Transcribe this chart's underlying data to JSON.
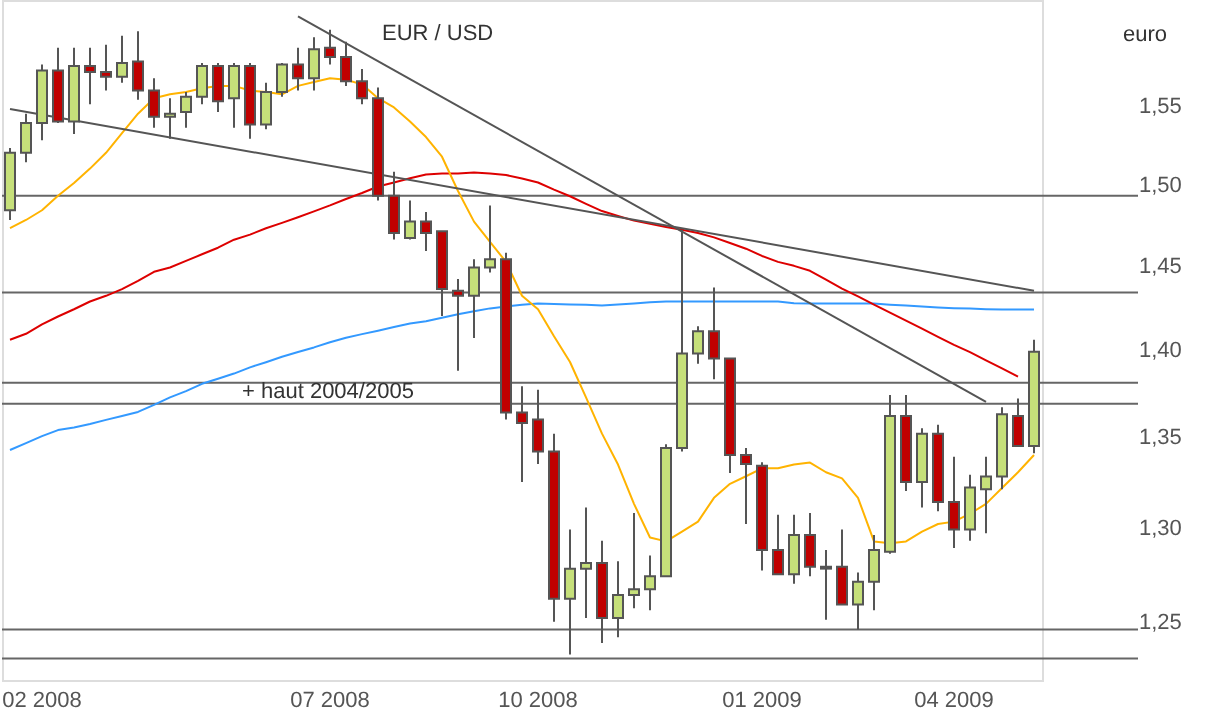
{
  "chart_data": {
    "type": "candlestick",
    "title": "EUR / USD",
    "ylabel": "euro",
    "categories": [
      null,
      null,
      "02 2008",
      null,
      null,
      null,
      null,
      null,
      null,
      null,
      null,
      null,
      null,
      null,
      null,
      null,
      null,
      null,
      null,
      null,
      "07 2008",
      null,
      null,
      null,
      null,
      null,
      null,
      null,
      null,
      null,
      null,
      null,
      null,
      "10 2008",
      null,
      null,
      null,
      null,
      null,
      null,
      null,
      null,
      null,
      null,
      null,
      null,
      null,
      "01 2009",
      null,
      null,
      null,
      null,
      null,
      null,
      null,
      null,
      null,
      null,
      null,
      "04 2009",
      null,
      null,
      null,
      null,
      null
    ],
    "ohlc": [
      [
        1.484,
        1.523,
        1.478,
        1.52
      ],
      [
        1.52,
        1.545,
        1.514,
        1.539
      ],
      [
        1.539,
        1.577,
        1.528,
        1.573
      ],
      [
        1.573,
        1.588,
        1.539,
        1.54
      ],
      [
        1.54,
        1.588,
        1.532,
        1.576
      ],
      [
        1.576,
        1.588,
        1.551,
        1.572
      ],
      [
        1.572,
        1.59,
        1.56,
        1.569
      ],
      [
        1.569,
        1.596,
        1.565,
        1.578
      ],
      [
        1.579,
        1.599,
        1.554,
        1.56
      ],
      [
        1.56,
        1.568,
        1.536,
        1.543
      ],
      [
        1.543,
        1.555,
        1.529,
        1.545
      ],
      [
        1.546,
        1.559,
        1.536,
        1.556
      ],
      [
        1.556,
        1.578,
        1.551,
        1.576
      ],
      [
        1.576,
        1.578,
        1.546,
        1.553
      ],
      [
        1.555,
        1.578,
        1.536,
        1.576
      ],
      [
        1.576,
        1.578,
        1.529,
        1.538
      ],
      [
        1.538,
        1.565,
        1.535,
        1.559
      ],
      [
        1.559,
        1.578,
        1.556,
        1.577
      ],
      [
        1.577,
        1.588,
        1.56,
        1.568
      ],
      [
        1.568,
        1.595,
        1.56,
        1.587
      ],
      [
        1.588,
        1.6,
        1.577,
        1.582
      ],
      [
        1.582,
        1.592,
        1.563,
        1.566
      ],
      [
        1.566,
        1.574,
        1.551,
        1.555
      ],
      [
        1.555,
        1.562,
        1.49,
        1.493
      ],
      [
        1.493,
        1.508,
        1.466,
        1.47
      ],
      [
        1.467,
        1.49,
        1.466,
        1.477
      ],
      [
        1.477,
        1.483,
        1.459,
        1.47
      ],
      [
        1.471,
        1.471,
        1.42,
        1.436
      ],
      [
        1.435,
        1.442,
        1.388,
        1.432
      ],
      [
        1.432,
        1.454,
        1.407,
        1.449
      ],
      [
        1.449,
        1.487,
        1.446,
        1.454
      ],
      [
        1.454,
        1.458,
        1.36,
        1.364
      ],
      [
        1.364,
        1.379,
        1.325,
        1.358
      ],
      [
        1.36,
        1.377,
        1.335,
        1.342
      ],
      [
        1.342,
        1.352,
        1.25,
        1.262
      ],
      [
        1.262,
        1.299,
        1.233,
        1.278
      ],
      [
        1.278,
        1.311,
        1.252,
        1.281
      ],
      [
        1.281,
        1.293,
        1.239,
        1.252
      ],
      [
        1.252,
        1.282,
        1.242,
        1.264
      ],
      [
        1.264,
        1.308,
        1.257,
        1.267
      ],
      [
        1.267,
        1.285,
        1.256,
        1.274
      ],
      [
        1.274,
        1.346,
        1.274,
        1.344
      ],
      [
        1.344,
        1.472,
        1.342,
        1.398
      ],
      [
        1.398,
        1.414,
        1.392,
        1.411
      ],
      [
        1.411,
        1.437,
        1.383,
        1.395
      ],
      [
        1.395,
        1.395,
        1.33,
        1.34
      ],
      [
        1.34,
        1.344,
        1.302,
        1.335
      ],
      [
        1.334,
        1.336,
        1.277,
        1.288
      ],
      [
        1.288,
        1.307,
        1.275,
        1.275
      ],
      [
        1.275,
        1.307,
        1.27,
        1.296
      ],
      [
        1.296,
        1.308,
        1.274,
        1.279
      ],
      [
        1.279,
        1.288,
        1.251,
        1.278
      ],
      [
        1.279,
        1.299,
        1.259,
        1.259
      ],
      [
        1.259,
        1.276,
        1.246,
        1.271
      ],
      [
        1.271,
        1.296,
        1.256,
        1.288
      ],
      [
        1.287,
        1.374,
        1.286,
        1.362
      ],
      [
        1.362,
        1.374,
        1.32,
        1.325
      ],
      [
        1.325,
        1.355,
        1.311,
        1.352
      ],
      [
        1.352,
        1.357,
        1.309,
        1.314
      ],
      [
        1.314,
        1.339,
        1.289,
        1.299
      ],
      [
        1.299,
        1.329,
        1.293,
        1.322
      ],
      [
        1.321,
        1.339,
        1.297,
        1.328
      ],
      [
        1.328,
        1.367,
        1.321,
        1.363
      ],
      [
        1.362,
        1.372,
        1.345,
        1.345
      ],
      [
        1.345,
        1.406,
        1.341,
        1.399
      ]
    ],
    "colors": [
      "#c6e07a",
      "#c6e07a",
      "#c6e07a",
      "#c00000",
      "#c6e07a",
      "#c00000",
      "#c00000",
      "#c6e07a",
      "#c00000",
      "#c00000",
      "#c6e07a",
      "#c6e07a",
      "#c6e07a",
      "#c00000",
      "#c6e07a",
      "#c00000",
      "#c6e07a",
      "#c6e07a",
      "#c00000",
      "#c6e07a",
      "#c00000",
      "#c00000",
      "#c00000",
      "#c00000",
      "#c00000",
      "#c6e07a",
      "#c00000",
      "#c00000",
      "#c00000",
      "#c6e07a",
      "#c6e07a",
      "#c00000",
      "#c00000",
      "#c00000",
      "#c00000",
      "#c6e07a",
      "#c6e07a",
      "#c00000",
      "#c6e07a",
      "#c6e07a",
      "#c6e07a",
      "#c6e07a",
      "#c6e07a",
      "#c6e07a",
      "#c00000",
      "#c00000",
      "#c00000",
      "#c00000",
      "#c00000",
      "#c6e07a",
      "#c00000",
      "#c00000",
      "#c00000",
      "#c6e07a",
      "#c6e07a",
      "#c6e07a",
      "#c00000",
      "#c6e07a",
      "#c00000",
      "#c00000",
      "#c6e07a",
      "#c6e07a",
      "#c6e07a",
      "#c00000",
      "#c6e07a"
    ],
    "series": [
      {
        "type": "line",
        "color": "#3399ff",
        "values": [
          1.3428,
          1.3467,
          1.3506,
          1.354,
          1.3555,
          1.3574,
          1.3598,
          1.362,
          1.3643,
          1.3683,
          1.3726,
          1.3762,
          1.3804,
          1.3833,
          1.3863,
          1.3899,
          1.3929,
          1.3961,
          1.3988,
          1.4015,
          1.4045,
          1.4072,
          1.4093,
          1.4113,
          1.4135,
          1.4155,
          1.4169,
          1.419,
          1.421,
          1.4228,
          1.4245,
          1.4256,
          1.4267,
          1.4274,
          1.4271,
          1.4268,
          1.4266,
          1.4262,
          1.4268,
          1.4274,
          1.4281,
          1.4286,
          1.4286,
          1.4286,
          1.4286,
          1.4286,
          1.4286,
          1.4286,
          1.4286,
          1.4276,
          1.4274,
          1.4274,
          1.4274,
          1.4274,
          1.4274,
          1.4267,
          1.4262,
          1.4256,
          1.425,
          1.4246,
          1.4244,
          1.424,
          1.4238,
          1.4238,
          1.4238
        ]
      },
      {
        "type": "line",
        "color": "#dd0000",
        "values": [
          1.406,
          1.4095,
          1.415,
          1.4197,
          1.424,
          1.4286,
          1.432,
          1.436,
          1.441,
          1.4464,
          1.449,
          1.453,
          1.457,
          1.461,
          1.4659,
          1.469,
          1.4729,
          1.4762,
          1.4797,
          1.4833,
          1.487,
          1.491,
          1.4947,
          1.4988,
          1.5013,
          1.504,
          1.5063,
          1.5069,
          1.507,
          1.5075,
          1.5069,
          1.506,
          1.5038,
          1.5013,
          1.4968,
          1.4927,
          1.488,
          1.4835,
          1.4805,
          1.4776,
          1.4756,
          1.4737,
          1.472,
          1.47,
          1.4673,
          1.4639,
          1.4604,
          1.456,
          1.4524,
          1.45,
          1.447,
          1.4417,
          1.4363,
          1.4316,
          1.4268,
          1.422,
          1.4173,
          1.4125,
          1.4077,
          1.403,
          1.3988,
          1.394,
          1.3893,
          1.3845,
          null
        ]
      },
      {
        "type": "line",
        "color": "#ffb300",
        "values": [
          1.473,
          1.478,
          1.484,
          1.493,
          1.501,
          1.51,
          1.52,
          1.5325,
          1.545,
          1.555,
          1.5575,
          1.559,
          1.5615,
          1.563,
          1.563,
          1.56,
          1.559,
          1.5575,
          1.563,
          1.5655,
          1.568,
          1.567,
          1.564,
          1.555,
          1.549,
          1.54,
          1.53,
          1.5175,
          1.496,
          1.477,
          1.4646,
          1.4524,
          1.432,
          1.424,
          1.408,
          1.393,
          1.3726,
          1.352,
          1.3347,
          1.313,
          1.2947,
          1.2926,
          1.2979,
          1.3033,
          1.3163,
          1.324,
          1.3282,
          1.3326,
          1.3326,
          1.3347,
          1.3358,
          1.3304,
          1.327,
          1.3163,
          1.2926,
          1.2916,
          1.2926,
          1.2979,
          1.302,
          1.3033,
          1.3076,
          1.313,
          1.3217,
          1.3304,
          1.34
        ]
      },
      {
        "type": "line",
        "color": "#555555",
        "values": [
          null,
          null,
          null,
          null,
          null,
          null,
          null,
          null,
          null,
          null,
          null,
          null,
          null,
          null,
          null,
          null,
          null,
          null,
          1.609,
          null,
          null,
          null,
          null,
          null,
          null,
          null,
          null,
          null,
          null,
          null,
          null,
          null,
          null,
          null,
          null,
          null,
          null,
          null,
          null,
          null,
          null,
          null,
          null,
          null,
          null,
          null,
          null,
          null,
          null,
          null,
          null,
          null,
          null,
          null,
          null,
          null,
          null,
          null,
          null,
          null,
          null,
          1.37,
          null,
          null,
          null
        ]
      },
      {
        "type": "line",
        "color": "#555555",
        "values": [
          1.548,
          null,
          null,
          null,
          null,
          null,
          null,
          null,
          null,
          null,
          null,
          null,
          null,
          null,
          null,
          null,
          null,
          null,
          null,
          null,
          null,
          null,
          null,
          null,
          null,
          null,
          null,
          null,
          null,
          null,
          null,
          null,
          null,
          null,
          null,
          null,
          null,
          null,
          null,
          null,
          null,
          null,
          null,
          null,
          null,
          null,
          null,
          null,
          null,
          null,
          null,
          null,
          null,
          null,
          null,
          null,
          null,
          null,
          null,
          null,
          null,
          null,
          null,
          null,
          1.435
        ]
      }
    ],
    "ref_lines": [
      {
        "axis": "y",
        "value": 1.493,
        "color": "#666666"
      },
      {
        "axis": "y",
        "value": 1.434,
        "color": "#666666"
      },
      {
        "axis": "y",
        "value": 1.381,
        "color": "#666666"
      },
      {
        "axis": "y",
        "value": 1.369,
        "color": "#666666",
        "label": "+ haut 2004/2005"
      },
      {
        "axis": "y",
        "value": 1.246,
        "color": "#666666"
      },
      {
        "axis": "y",
        "value": 1.231,
        "color": "#666666"
      }
    ],
    "log": true,
    "grid": false,
    "ylim": [
      1.22,
      1.62
    ],
    "yticks": [
      {
        "value": 1.25,
        "label": "1,25"
      },
      {
        "value": 1.3,
        "label": "1,30"
      },
      {
        "value": 1.35,
        "label": "1,35"
      },
      {
        "value": 1.4,
        "label": "1,40"
      },
      {
        "value": 1.45,
        "label": "1,45"
      },
      {
        "value": 1.5,
        "label": "1,50"
      },
      {
        "value": 1.55,
        "label": "1,55"
      }
    ]
  }
}
